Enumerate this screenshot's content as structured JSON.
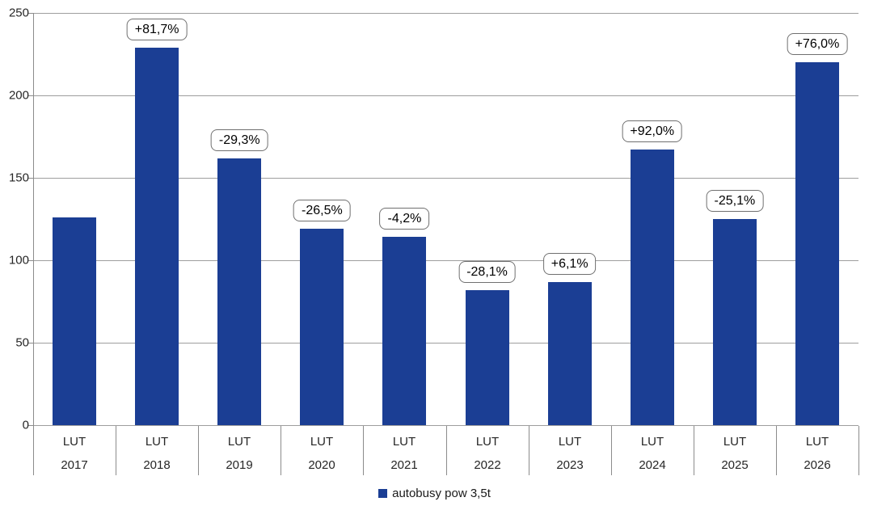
{
  "chart_data": {
    "type": "bar",
    "title": "",
    "xlabel": "",
    "ylabel": "",
    "categories": [
      {
        "line1": "LUT",
        "line2": "2017"
      },
      {
        "line1": "LUT",
        "line2": "2018"
      },
      {
        "line1": "LUT",
        "line2": "2019"
      },
      {
        "line1": "LUT",
        "line2": "2020"
      },
      {
        "line1": "LUT",
        "line2": "2021"
      },
      {
        "line1": "LUT",
        "line2": "2022"
      },
      {
        "line1": "LUT",
        "line2": "2023"
      },
      {
        "line1": "LUT",
        "line2": "2024"
      },
      {
        "line1": "LUT",
        "line2": "2025"
      },
      {
        "line1": "LUT",
        "line2": "2026"
      }
    ],
    "values": [
      126,
      229,
      162,
      119,
      114,
      82,
      87,
      167,
      125,
      220
    ],
    "bar_labels": [
      "",
      "+81,7%",
      "-29,3%",
      "-26,5%",
      "-4,2%",
      "-28,1%",
      "+6,1%",
      "+92,0%",
      "-25,1%",
      "+76,0%"
    ],
    "ylim": [
      0,
      250
    ],
    "yticks": [
      0,
      50,
      100,
      150,
      200,
      250
    ],
    "grid": true,
    "legend_position": "bottom-center",
    "legend": [
      {
        "label": "autobusy pow 3,5t",
        "color": "#1b3e94"
      }
    ],
    "colors": {
      "bar": "#1b3e94",
      "gridline": "#9e9e9e",
      "axis": "#8c8c8c",
      "annotation_border": "#707070",
      "text": "#262626"
    }
  }
}
